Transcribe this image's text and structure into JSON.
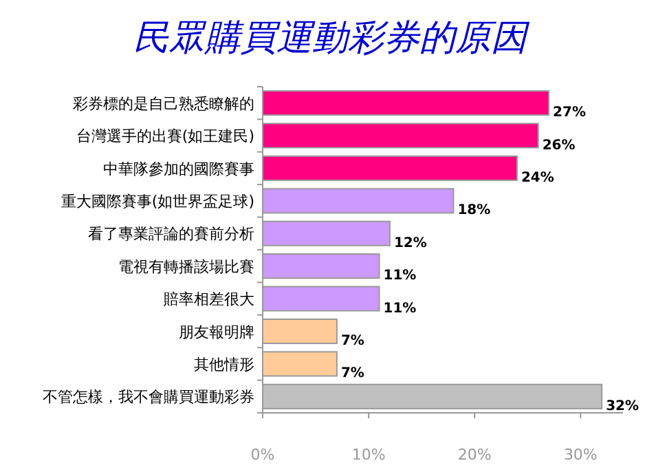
{
  "chart_data": {
    "type": "bar",
    "orientation": "horizontal",
    "title": "民眾購買運動彩券的原因",
    "categories": [
      "彩券標的是自己熟悉瞭解的",
      "台灣選手的出賽(如王建民)",
      "中華隊參加的國際賽事",
      "重大國際賽事(如世界盃足球)",
      "看了專業評論的賽前分析",
      "電視有轉播該場比賽",
      "賠率相差很大",
      "朋友報明牌",
      "其他情形",
      "不管怎樣，我不會購買運動彩券"
    ],
    "values": [
      27,
      26,
      24,
      18,
      12,
      11,
      11,
      7,
      7,
      32
    ],
    "value_labels": [
      "27%",
      "26%",
      "24%",
      "18%",
      "12%",
      "11%",
      "11%",
      "7%",
      "7%",
      "32%"
    ],
    "colors": [
      "#ff0080",
      "#ff0080",
      "#ff0080",
      "#cc99ff",
      "#cc99ff",
      "#cc99ff",
      "#cc99ff",
      "#ffcc99",
      "#ffcc99",
      "#c0c0c0"
    ],
    "xlim": [
      0,
      34
    ],
    "xticks": [
      {
        "value": 0,
        "label": "0%"
      },
      {
        "value": 10,
        "label": "10%"
      },
      {
        "value": 20,
        "label": "20%"
      },
      {
        "value": 30,
        "label": "30%"
      }
    ]
  }
}
